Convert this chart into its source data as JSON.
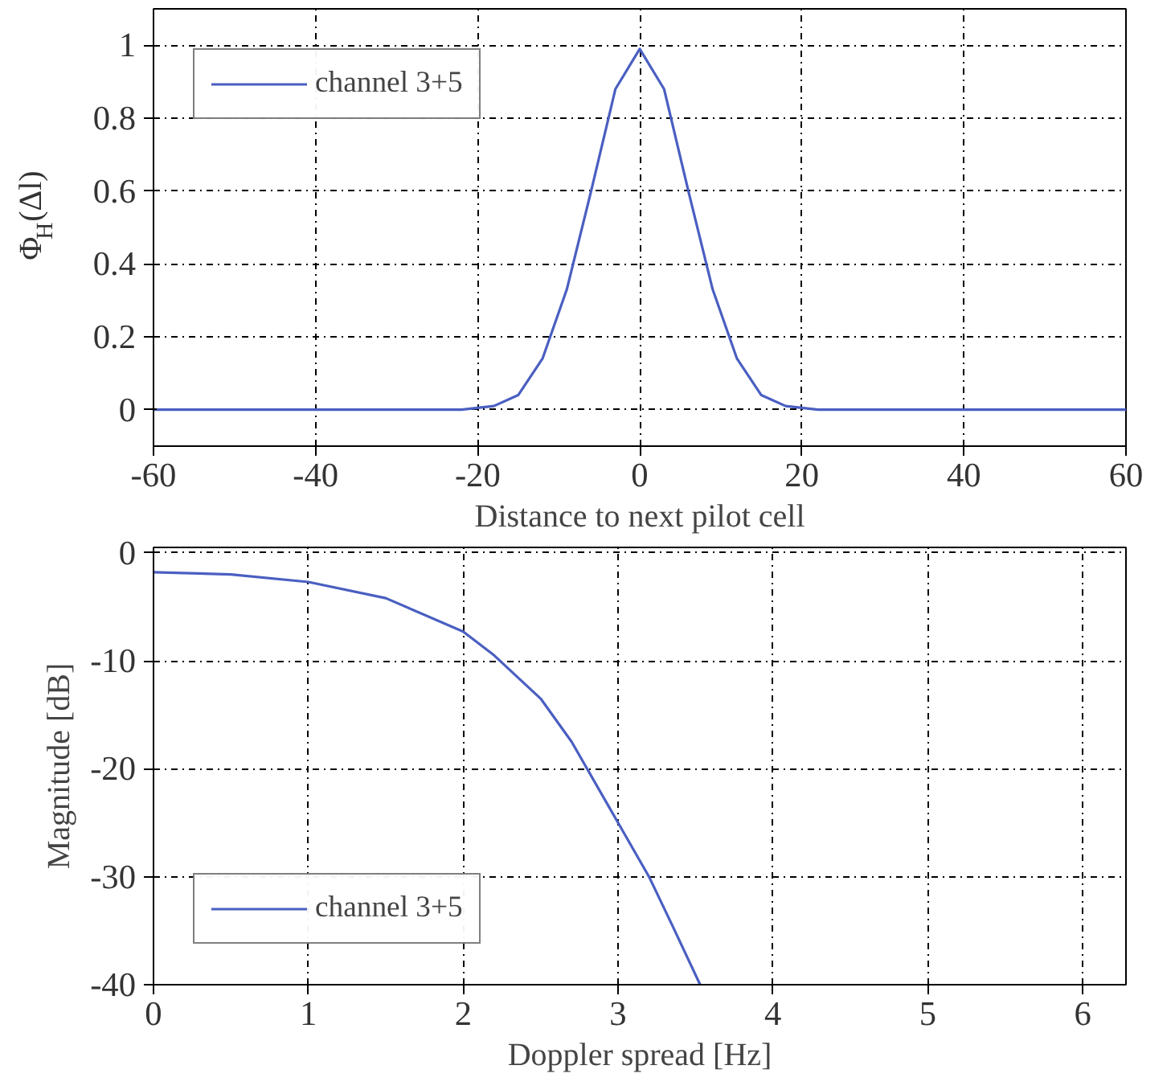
{
  "chart_data": [
    {
      "type": "line",
      "xlabel": "Distance to next pilot cell",
      "ylabel": "Φ$_{H}$(Δl)",
      "xlim": [
        -60,
        60
      ],
      "ylim": [
        -0.1,
        1.1
      ],
      "xticks": [
        -60,
        -40,
        -20,
        0,
        20,
        40,
        60
      ],
      "yticks": [
        0,
        0.2,
        0.4,
        0.6,
        0.8,
        1
      ],
      "grid": true,
      "legend": "top left",
      "series": [
        {
          "name": "channel 3+5",
          "color": "#4a5fc1",
          "x": [
            -60,
            -40,
            -22,
            -18,
            -15,
            -12,
            -9,
            -6,
            -3,
            0,
            3,
            6,
            9,
            12,
            15,
            18,
            22,
            40,
            60
          ],
          "values": [
            0,
            0,
            0,
            0.01,
            0.04,
            0.14,
            0.33,
            0.6,
            0.88,
            0.99,
            0.88,
            0.6,
            0.33,
            0.14,
            0.04,
            0.01,
            0,
            0,
            0
          ]
        }
      ]
    },
    {
      "type": "line",
      "xlabel": "Doppler spread [Hz]",
      "ylabel": "Magnitude [dB]",
      "xlim": [
        0,
        6.28
      ],
      "ylim": [
        -40,
        0.5
      ],
      "xticks": [
        0,
        1,
        2,
        3,
        4,
        5,
        6
      ],
      "yticks": [
        -40,
        -30,
        -20,
        -10,
        0
      ],
      "grid": true,
      "legend": "bottom left",
      "series": [
        {
          "name": "channel 3+5",
          "color": "#4a5fc1",
          "x": [
            0,
            0.5,
            1,
            1.5,
            2,
            2.2,
            2.5,
            2.7,
            3,
            3.2,
            3.35,
            3.53
          ],
          "values": [
            -1.8,
            -2,
            -2.7,
            -4.2,
            -7.3,
            -9.5,
            -13.5,
            -17.5,
            -25,
            -30,
            -34.5,
            -40
          ]
        }
      ]
    }
  ]
}
